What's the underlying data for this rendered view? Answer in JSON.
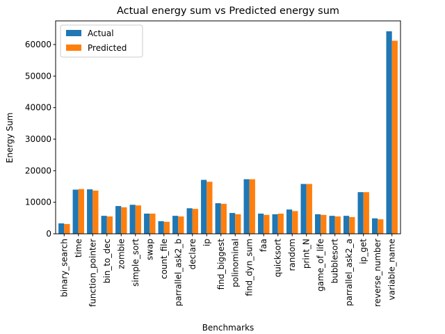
{
  "chart_data": {
    "type": "bar",
    "title": "Actual energy sum vs Predicted energy sum",
    "xlabel": "Benchmarks",
    "ylabel": "Energy Sum",
    "ylim": [
      0,
      67500
    ],
    "yticks": [
      0,
      10000,
      20000,
      30000,
      40000,
      50000,
      60000
    ],
    "legend_position": "top-left",
    "grid": false,
    "categories": [
      "binary_search",
      "time",
      "function_pointer",
      "bin_to_dec",
      "zombie",
      "simple_sort",
      "swap",
      "count_file",
      "parrallel_ask2_b",
      "declare",
      "ip",
      "find_biggest",
      "polinominal",
      "find_dyn_sum",
      "faa",
      "quicksort",
      "random",
      "print_N",
      "game_of_life",
      "bubblesort",
      "parrallel_ask2_a",
      "ip_get",
      "reverse_number",
      "variable_name"
    ],
    "series": [
      {
        "name": "Actual",
        "color": "#1f77b4",
        "values": [
          3300,
          14000,
          14100,
          5700,
          8800,
          9200,
          6400,
          4000,
          5700,
          8100,
          17100,
          9700,
          6600,
          17300,
          6400,
          6200,
          7700,
          15800,
          6200,
          5700,
          5700,
          13200,
          4900,
          64200
        ]
      },
      {
        "name": "Predicted",
        "color": "#ff7f0e",
        "values": [
          3100,
          14200,
          13700,
          5500,
          8400,
          9000,
          6400,
          3800,
          5500,
          7900,
          16500,
          9500,
          6200,
          17300,
          6000,
          6400,
          7200,
          15800,
          6000,
          5500,
          5300,
          13200,
          4600,
          61200
        ]
      }
    ]
  }
}
